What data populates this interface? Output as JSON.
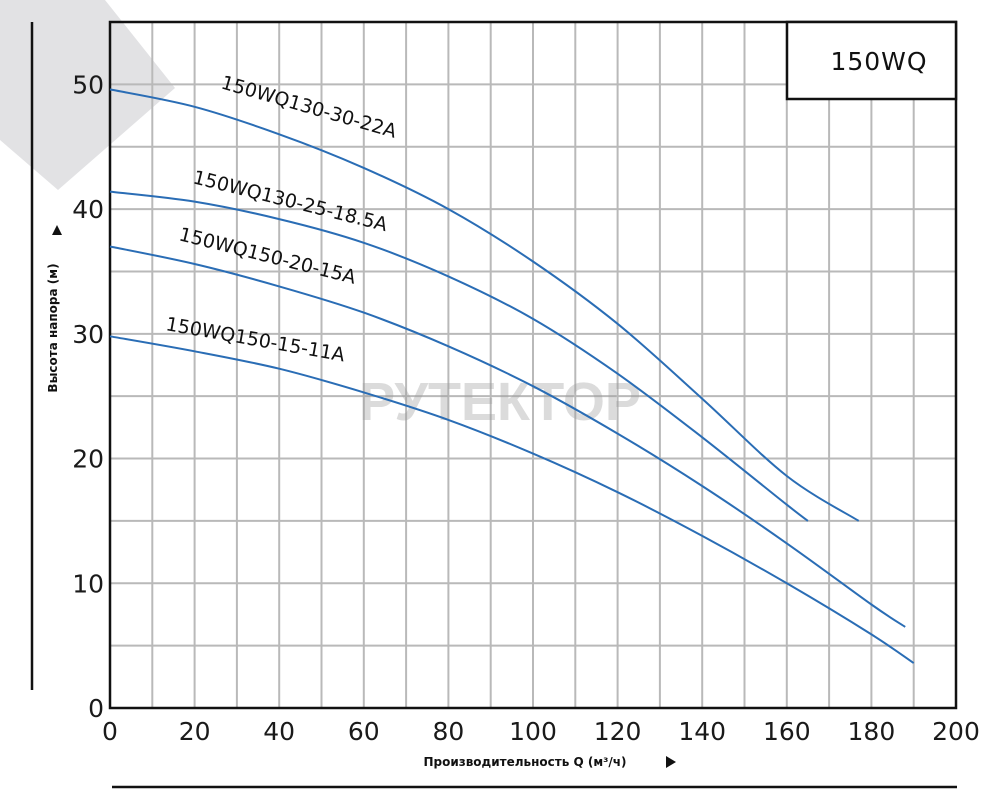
{
  "chart_data": {
    "type": "line",
    "title": "150WQ",
    "watermark": "РУТЕКТОР",
    "xlabel": "Производительность Q (м³/ч)",
    "ylabel": "Высота напора (м)",
    "xlim": [
      0,
      200
    ],
    "ylim": [
      0,
      55
    ],
    "xticks": [
      0,
      20,
      40,
      60,
      80,
      100,
      120,
      140,
      160,
      180,
      200
    ],
    "yticks": [
      0,
      10,
      20,
      30,
      40,
      50
    ],
    "grid": true,
    "series_color": "#2a6db5",
    "series": [
      {
        "name": "150WQ130-30-22A",
        "x": [
          0,
          20,
          40,
          60,
          80,
          100,
          120,
          140,
          160,
          177
        ],
        "y": [
          49.6,
          48.2,
          46.0,
          43.3,
          40.0,
          35.8,
          30.8,
          24.8,
          18.6,
          15.0
        ]
      },
      {
        "name": "150WQ130-25-18.5A",
        "x": [
          0,
          20,
          40,
          60,
          80,
          100,
          120,
          140,
          160,
          165
        ],
        "y": [
          41.4,
          40.6,
          39.2,
          37.3,
          34.6,
          31.2,
          26.8,
          21.7,
          16.3,
          15.0
        ]
      },
      {
        "name": "150WQ150-20-15A",
        "x": [
          0,
          20,
          40,
          60,
          80,
          100,
          120,
          140,
          160,
          180,
          188
        ],
        "y": [
          37.0,
          35.6,
          33.8,
          31.7,
          29.0,
          25.8,
          22.0,
          17.8,
          13.2,
          8.3,
          6.5
        ]
      },
      {
        "name": "150WQ150-15-11A",
        "x": [
          0,
          20,
          40,
          60,
          80,
          100,
          120,
          140,
          160,
          180,
          190
        ],
        "y": [
          29.8,
          28.6,
          27.2,
          25.3,
          23.1,
          20.4,
          17.3,
          13.8,
          10.0,
          5.9,
          3.6
        ]
      }
    ]
  }
}
